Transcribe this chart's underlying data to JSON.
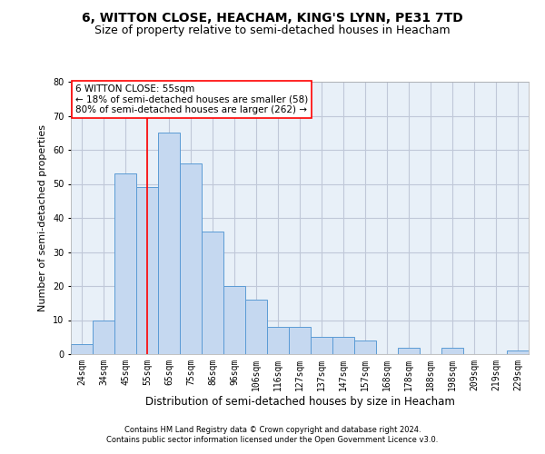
{
  "title": "6, WITTON CLOSE, HEACHAM, KING'S LYNN, PE31 7TD",
  "subtitle": "Size of property relative to semi-detached houses in Heacham",
  "xlabel": "Distribution of semi-detached houses by size in Heacham",
  "ylabel": "Number of semi-detached properties",
  "categories": [
    "24sqm",
    "34sqm",
    "45sqm",
    "55sqm",
    "65sqm",
    "75sqm",
    "86sqm",
    "96sqm",
    "106sqm",
    "116sqm",
    "127sqm",
    "137sqm",
    "147sqm",
    "157sqm",
    "168sqm",
    "178sqm",
    "188sqm",
    "198sqm",
    "209sqm",
    "219sqm",
    "229sqm"
  ],
  "values": [
    3,
    10,
    53,
    49,
    65,
    56,
    36,
    20,
    16,
    8,
    8,
    5,
    5,
    4,
    0,
    2,
    0,
    2,
    0,
    0,
    1
  ],
  "bar_color": "#c5d8f0",
  "bar_edge_color": "#5b9bd5",
  "highlight_index": 3,
  "red_line_label": "6 WITTON CLOSE: 55sqm",
  "annotation_smaller": "← 18% of semi-detached houses are smaller (58)",
  "annotation_larger": "80% of semi-detached houses are larger (262) →",
  "ylim": [
    0,
    80
  ],
  "yticks": [
    0,
    10,
    20,
    30,
    40,
    50,
    60,
    70,
    80
  ],
  "footer1": "Contains HM Land Registry data © Crown copyright and database right 2024.",
  "footer2": "Contains public sector information licensed under the Open Government Licence v3.0.",
  "background_color": "#ffffff",
  "ax_background": "#e8f0f8",
  "grid_color": "#c0c8d8",
  "title_fontsize": 10,
  "subtitle_fontsize": 9,
  "annotation_fontsize": 7.5,
  "tick_fontsize": 7,
  "ylabel_fontsize": 8,
  "xlabel_fontsize": 8.5,
  "footer_fontsize": 6
}
